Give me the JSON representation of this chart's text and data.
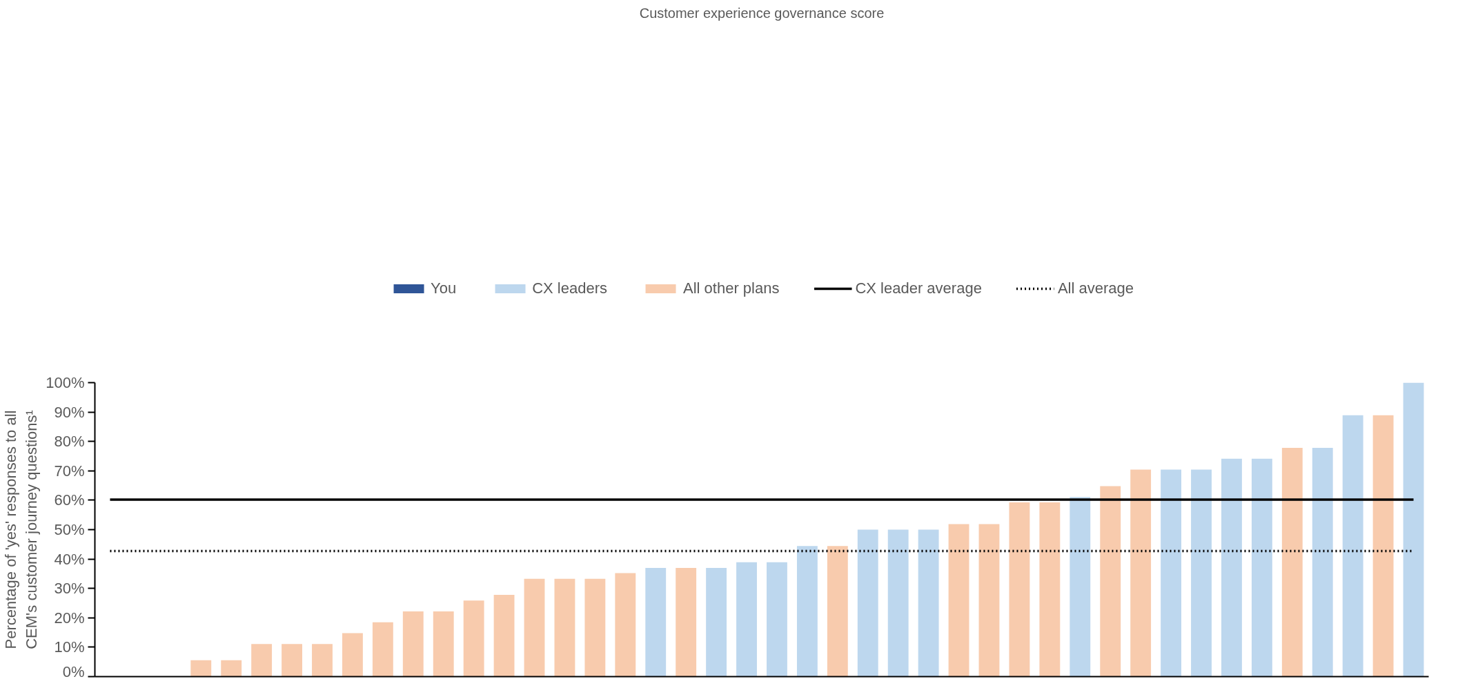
{
  "chart_data": {
    "type": "bar",
    "title": "Customer experience governance score",
    "ylabel": "Percentage of 'yes' responses to all CEM's customer journey questions¹",
    "categories": [
      null,
      null,
      null,
      null,
      null,
      null,
      null,
      null,
      null,
      null,
      null,
      null,
      null,
      null,
      null,
      null,
      null,
      null,
      null,
      null,
      null,
      null,
      null,
      null,
      null,
      null,
      null,
      null,
      null,
      null,
      null,
      null,
      null,
      null,
      null,
      null,
      null,
      null,
      null,
      null,
      null,
      null,
      null,
      null
    ],
    "series": [
      {
        "name": "You",
        "color": "#2f5597",
        "values": [
          null,
          null,
          null,
          null,
          null,
          null,
          null,
          null,
          null,
          null,
          null,
          null,
          null,
          null,
          null,
          null,
          null,
          null,
          null,
          null,
          null,
          null,
          null,
          null,
          null,
          null,
          null,
          null,
          null,
          null,
          null,
          null,
          null,
          null,
          null,
          null,
          null,
          null,
          null,
          null,
          null,
          null,
          null,
          null
        ]
      },
      {
        "name": "CX leaders",
        "color": "#bdd7ee",
        "values": [
          null,
          null,
          null,
          null,
          null,
          null,
          null,
          null,
          null,
          null,
          null,
          null,
          null,
          null,
          null,
          null,
          null,
          null,
          37,
          null,
          37,
          38.9,
          38.9,
          44.4,
          null,
          50,
          50,
          50,
          null,
          null,
          null,
          null,
          61.1,
          null,
          null,
          70.4,
          70.4,
          74.1,
          74.1,
          null,
          77.8,
          88.9,
          null,
          100
        ]
      },
      {
        "name": "All other plans",
        "color": "#f8cbad",
        "values": [
          0,
          0,
          0,
          5.6,
          5.6,
          11.1,
          11.1,
          11.1,
          14.8,
          18.5,
          22.2,
          22.2,
          25.9,
          27.8,
          33.3,
          33.3,
          33.3,
          35.2,
          null,
          37,
          null,
          null,
          null,
          null,
          44.4,
          null,
          null,
          null,
          51.9,
          51.9,
          59.3,
          59.3,
          null,
          64.8,
          70.4,
          null,
          null,
          null,
          null,
          77.8,
          null,
          null,
          88.9,
          null
        ]
      }
    ],
    "ref_lines": [
      {
        "axis": "y",
        "value": 60.2,
        "label": "CX leader average",
        "color": "#000000",
        "line_style": "solid"
      },
      {
        "axis": "y",
        "value": 42.7,
        "label": "All average",
        "color": "#000000",
        "line_style": "dotted"
      }
    ],
    "ylim": [
      0,
      100
    ],
    "yticks": [
      {
        "value": 0,
        "label": "0%"
      },
      {
        "value": 10,
        "label": "10%"
      },
      {
        "value": 20,
        "label": "20%"
      },
      {
        "value": 30,
        "label": "30%"
      },
      {
        "value": 40,
        "label": "40%"
      },
      {
        "value": 50,
        "label": "50%"
      },
      {
        "value": 60,
        "label": "60%"
      },
      {
        "value": 70,
        "label": "70%"
      },
      {
        "value": 80,
        "label": "80%"
      },
      {
        "value": 90,
        "label": "90%"
      },
      {
        "value": 100,
        "label": "100%"
      }
    ],
    "grid": false,
    "legend": "top"
  }
}
